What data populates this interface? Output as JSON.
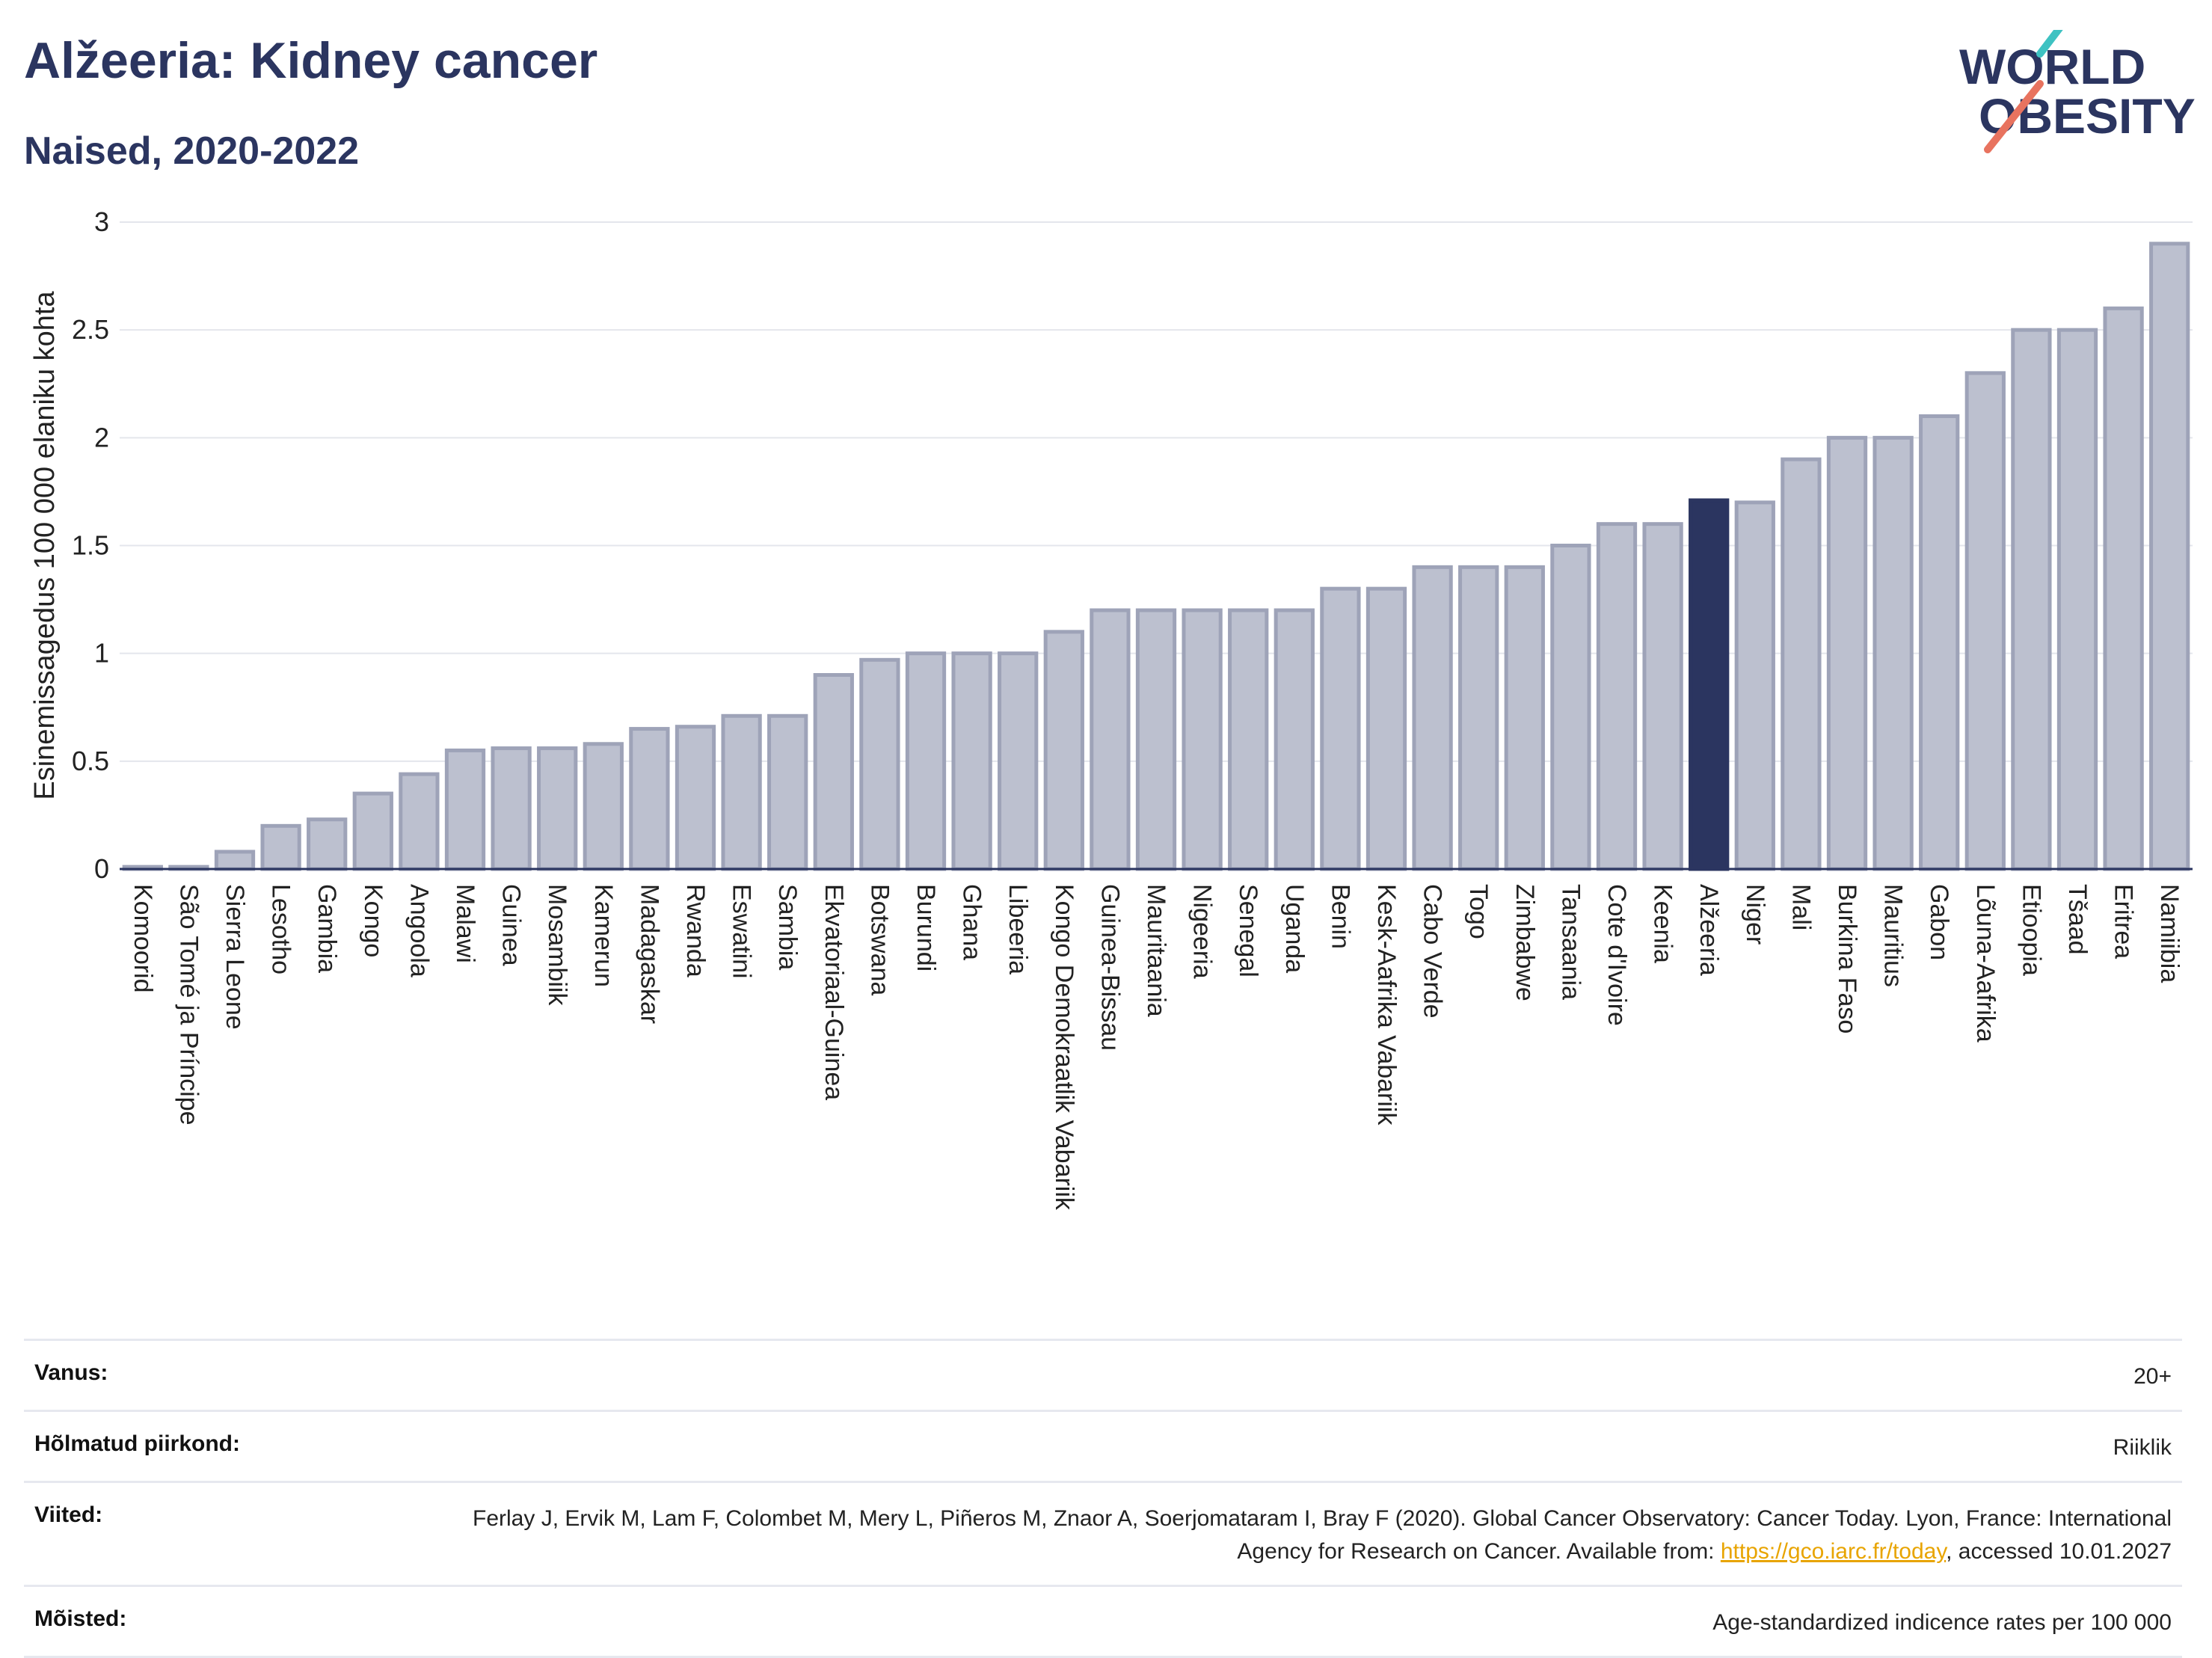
{
  "header": {
    "title": "Alžeeria: Kidney cancer",
    "subtitle": "Naised, 2020-2022",
    "logo_line1": "WORLD",
    "logo_line2": "OBESITY"
  },
  "colors": {
    "bar": "#bcc0cf",
    "bar_border": "#9ea3b8",
    "highlight": "#2b3560",
    "logo_text": "#2b3560",
    "logo_teal": "#3ec2c2",
    "logo_red": "#e8735f"
  },
  "chart_data": {
    "type": "bar",
    "ylabel": "Esinemissagedus 100 000 elaniku kohta",
    "ylim": [
      0,
      3
    ],
    "yticks": [
      "0",
      "0.5",
      "1",
      "1.5",
      "2",
      "2.5",
      "3"
    ],
    "grid": true,
    "highlight": "Alžeeria",
    "categories": [
      "Komoorid",
      "São Tomé ja Príncipe",
      "Sierra Leone",
      "Lesotho",
      "Gambia",
      "Kongo",
      "Angoola",
      "Malawi",
      "Guinea",
      "Mosambiik",
      "Kamerun",
      "Madagaskar",
      "Rwanda",
      "Eswatini",
      "Sambia",
      "Ekvatoriaal-Guinea",
      "Botswana",
      "Burundi",
      "Ghana",
      "Libeeria",
      "Kongo Demokraatlik Vabariik",
      "Guinea-Bissau",
      "Mauritaania",
      "Nigeeria",
      "Senegal",
      "Uganda",
      "Benin",
      "Kesk-Aafrika Vabariik",
      "Cabo Verde",
      "Togo",
      "Zimbabwe",
      "Tansaania",
      "Cote d'Ivoire",
      "Keenia",
      "Alžeeria",
      "Niger",
      "Mali",
      "Burkina Faso",
      "Mauritius",
      "Gabon",
      "Lõuna-Aafrika",
      "Etioopia",
      "Tšaad",
      "Eritrea",
      "Namiibia"
    ],
    "values": [
      0.01,
      0.01,
      0.08,
      0.2,
      0.23,
      0.35,
      0.44,
      0.55,
      0.56,
      0.56,
      0.58,
      0.65,
      0.66,
      0.71,
      0.71,
      0.9,
      0.97,
      1.0,
      1.0,
      1.0,
      1.1,
      1.2,
      1.2,
      1.2,
      1.2,
      1.2,
      1.3,
      1.3,
      1.4,
      1.4,
      1.4,
      1.5,
      1.6,
      1.6,
      1.71,
      1.7,
      1.9,
      2.0,
      2.0,
      2.1,
      2.3,
      2.5,
      2.5,
      2.6,
      2.9
    ]
  },
  "meta": [
    {
      "label": "Vanus:",
      "value": "20+"
    },
    {
      "label": "Hõlmatud piirkond:",
      "value": "Riiklik"
    },
    {
      "label": "Viited:",
      "value_pre": "Ferlay J, Ervik M, Lam F, Colombet M, Mery L, Piñeros M, Znaor A, Soerjomataram I, Bray F (2020). Global Cancer Observatory: Cancer Today. Lyon, France: International Agency for Research on Cancer. Available from: ",
      "link": "https://gco.iarc.fr/today",
      "value_post": ", accessed 10.01.2027"
    },
    {
      "label": "Mõisted:",
      "value": "Age-standardized indicence rates per 100 000"
    }
  ]
}
